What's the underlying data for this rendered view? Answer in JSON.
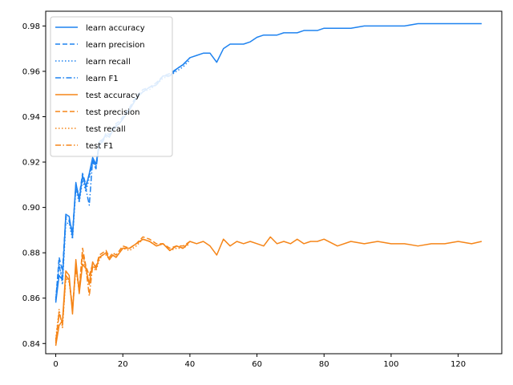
{
  "chart_data": {
    "type": "line",
    "title": "",
    "xlabel": "",
    "ylabel": "",
    "xlim": [
      -3,
      133
    ],
    "ylim": [
      0.8355,
      0.9865
    ],
    "xticks": [
      0,
      20,
      40,
      60,
      80,
      100,
      120
    ],
    "yticks": [
      0.84,
      0.86,
      0.88,
      0.9,
      0.92,
      0.94,
      0.96,
      0.98
    ],
    "ytick_labels": [
      "0.84",
      "0.86",
      "0.88",
      "0.90",
      "0.92",
      "0.94",
      "0.96",
      "0.98"
    ],
    "grid": false,
    "legend_position": "top-left",
    "colors": {
      "learn": "#1f83f0",
      "test": "#f58518"
    },
    "series": [
      {
        "name": "learn accuracy",
        "group": "learn",
        "style": "solid",
        "x": [
          0,
          1,
          2,
          3,
          4,
          5,
          6,
          7,
          8,
          9,
          10,
          11,
          12,
          13,
          14,
          15,
          16,
          17,
          18,
          19,
          20,
          22,
          24,
          26,
          28,
          30,
          32,
          34,
          36,
          38,
          40,
          42,
          44,
          46,
          48,
          50,
          52,
          54,
          56,
          58,
          60,
          62,
          64,
          66,
          68,
          70,
          72,
          74,
          76,
          78,
          80,
          84,
          88,
          92,
          96,
          100,
          104,
          108,
          112,
          116,
          120,
          124,
          127
        ],
        "y": [
          0.858,
          0.87,
          0.868,
          0.897,
          0.896,
          0.887,
          0.911,
          0.903,
          0.914,
          0.909,
          0.915,
          0.922,
          0.919,
          0.929,
          0.93,
          0.932,
          0.931,
          0.934,
          0.936,
          0.937,
          0.939,
          0.943,
          0.948,
          0.951,
          0.953,
          0.954,
          0.958,
          0.958,
          0.961,
          0.963,
          0.966,
          0.967,
          0.968,
          0.968,
          0.964,
          0.97,
          0.972,
          0.972,
          0.972,
          0.973,
          0.975,
          0.976,
          0.976,
          0.976,
          0.977,
          0.977,
          0.977,
          0.978,
          0.978,
          0.978,
          0.979,
          0.979,
          0.979,
          0.98,
          0.98,
          0.98,
          0.98,
          0.981,
          0.981,
          0.981,
          0.981,
          0.981,
          0.981
        ]
      },
      {
        "name": "learn precision",
        "group": "learn",
        "style": "dashed",
        "x": [
          0,
          1,
          2,
          3,
          4,
          5,
          6,
          7,
          8,
          9,
          10,
          11,
          12,
          13,
          14,
          15,
          16,
          17,
          18,
          19,
          20,
          22,
          24,
          26,
          28,
          30,
          32,
          34,
          36,
          38,
          40
        ],
        "y": [
          0.859,
          0.878,
          0.872,
          0.896,
          0.895,
          0.889,
          0.91,
          0.905,
          0.915,
          0.91,
          0.914,
          0.92,
          0.917,
          0.928,
          0.929,
          0.933,
          0.932,
          0.935,
          0.937,
          0.938,
          0.94,
          0.944,
          0.949,
          0.952,
          0.953,
          0.955,
          0.958,
          0.959,
          0.961,
          0.963,
          0.966
        ]
      },
      {
        "name": "learn recall",
        "group": "learn",
        "style": "dotted",
        "x": [
          0,
          1,
          2,
          3,
          4,
          5,
          6,
          7,
          8,
          9,
          10,
          11,
          12,
          13,
          14,
          15,
          16,
          17,
          18,
          19,
          20,
          22,
          24,
          26,
          28,
          30,
          32,
          34,
          36,
          38,
          40
        ],
        "y": [
          0.86,
          0.876,
          0.866,
          0.893,
          0.893,
          0.886,
          0.908,
          0.902,
          0.912,
          0.907,
          0.913,
          0.921,
          0.918,
          0.927,
          0.93,
          0.931,
          0.931,
          0.934,
          0.935,
          0.937,
          0.939,
          0.943,
          0.948,
          0.951,
          0.952,
          0.954,
          0.957,
          0.958,
          0.96,
          0.962,
          0.965
        ]
      },
      {
        "name": "learn F1",
        "group": "learn",
        "style": "dashdot",
        "x": [
          0,
          1,
          2,
          3,
          4,
          5,
          6,
          7,
          8,
          9,
          10,
          11,
          12,
          13,
          14,
          15,
          16,
          17,
          18,
          19,
          20,
          22,
          24,
          26,
          28,
          30,
          32,
          34,
          36,
          38,
          40
        ],
        "y": [
          0.859,
          0.874,
          0.869,
          0.895,
          0.894,
          0.888,
          0.909,
          0.904,
          0.914,
          0.908,
          0.901,
          0.921,
          0.918,
          0.928,
          0.929,
          0.932,
          0.931,
          0.934,
          0.936,
          0.937,
          0.939,
          0.943,
          0.948,
          0.951,
          0.953,
          0.954,
          0.958,
          0.958,
          0.961,
          0.963,
          0.966
        ]
      },
      {
        "name": "test accuracy",
        "group": "test",
        "style": "solid",
        "x": [
          0,
          1,
          2,
          3,
          4,
          5,
          6,
          7,
          8,
          9,
          10,
          11,
          12,
          13,
          14,
          15,
          16,
          17,
          18,
          19,
          20,
          22,
          24,
          26,
          28,
          30,
          32,
          34,
          36,
          38,
          40,
          42,
          44,
          46,
          48,
          50,
          52,
          54,
          56,
          58,
          60,
          62,
          64,
          66,
          68,
          70,
          72,
          74,
          76,
          78,
          80,
          84,
          88,
          92,
          96,
          100,
          104,
          108,
          112,
          116,
          120,
          124,
          127
        ],
        "y": [
          0.839,
          0.848,
          0.85,
          0.872,
          0.87,
          0.853,
          0.877,
          0.862,
          0.875,
          0.873,
          0.866,
          0.876,
          0.873,
          0.878,
          0.879,
          0.88,
          0.877,
          0.879,
          0.878,
          0.88,
          0.882,
          0.882,
          0.884,
          0.886,
          0.885,
          0.883,
          0.884,
          0.881,
          0.883,
          0.882,
          0.885,
          0.884,
          0.885,
          0.883,
          0.879,
          0.886,
          0.883,
          0.885,
          0.884,
          0.885,
          0.884,
          0.883,
          0.887,
          0.884,
          0.885,
          0.884,
          0.886,
          0.884,
          0.885,
          0.885,
          0.886,
          0.883,
          0.885,
          0.884,
          0.885,
          0.884,
          0.884,
          0.883,
          0.884,
          0.884,
          0.885,
          0.884,
          0.885
        ]
      },
      {
        "name": "test precision",
        "group": "test",
        "style": "dashed",
        "x": [
          0,
          1,
          2,
          3,
          4,
          5,
          6,
          7,
          8,
          9,
          10,
          11,
          12,
          13,
          14,
          15,
          16,
          17,
          18,
          19,
          20,
          22,
          24,
          26,
          28,
          30,
          32,
          34,
          36,
          38,
          40
        ],
        "y": [
          0.84,
          0.853,
          0.849,
          0.87,
          0.868,
          0.856,
          0.874,
          0.864,
          0.882,
          0.874,
          0.87,
          0.875,
          0.874,
          0.879,
          0.88,
          0.881,
          0.878,
          0.88,
          0.879,
          0.881,
          0.883,
          0.882,
          0.884,
          0.887,
          0.886,
          0.884,
          0.884,
          0.882,
          0.883,
          0.883,
          0.885
        ]
      },
      {
        "name": "test recall",
        "group": "test",
        "style": "dotted",
        "x": [
          0,
          1,
          2,
          3,
          4,
          5,
          6,
          7,
          8,
          9,
          10,
          11,
          12,
          13,
          14,
          15,
          16,
          17,
          18,
          19,
          20,
          22,
          24,
          26,
          28,
          30,
          32,
          34,
          36,
          38,
          40
        ],
        "y": [
          0.842,
          0.855,
          0.847,
          0.869,
          0.867,
          0.855,
          0.873,
          0.863,
          0.879,
          0.872,
          0.867,
          0.874,
          0.872,
          0.877,
          0.879,
          0.879,
          0.877,
          0.879,
          0.878,
          0.88,
          0.882,
          0.881,
          0.883,
          0.886,
          0.885,
          0.883,
          0.884,
          0.881,
          0.882,
          0.882,
          0.884
        ]
      },
      {
        "name": "test F1",
        "group": "test",
        "style": "dashdot",
        "x": [
          0,
          1,
          2,
          3,
          4,
          5,
          6,
          7,
          8,
          9,
          10,
          11,
          12,
          13,
          14,
          15,
          16,
          17,
          18,
          19,
          20,
          22,
          24,
          26,
          28,
          30,
          32,
          34,
          36,
          38,
          40
        ],
        "y": [
          0.841,
          0.854,
          0.848,
          0.87,
          0.868,
          0.855,
          0.874,
          0.863,
          0.88,
          0.873,
          0.861,
          0.874,
          0.873,
          0.878,
          0.879,
          0.88,
          0.877,
          0.879,
          0.878,
          0.88,
          0.882,
          0.882,
          0.884,
          0.886,
          0.885,
          0.883,
          0.884,
          0.881,
          0.883,
          0.882,
          0.885
        ]
      }
    ]
  }
}
